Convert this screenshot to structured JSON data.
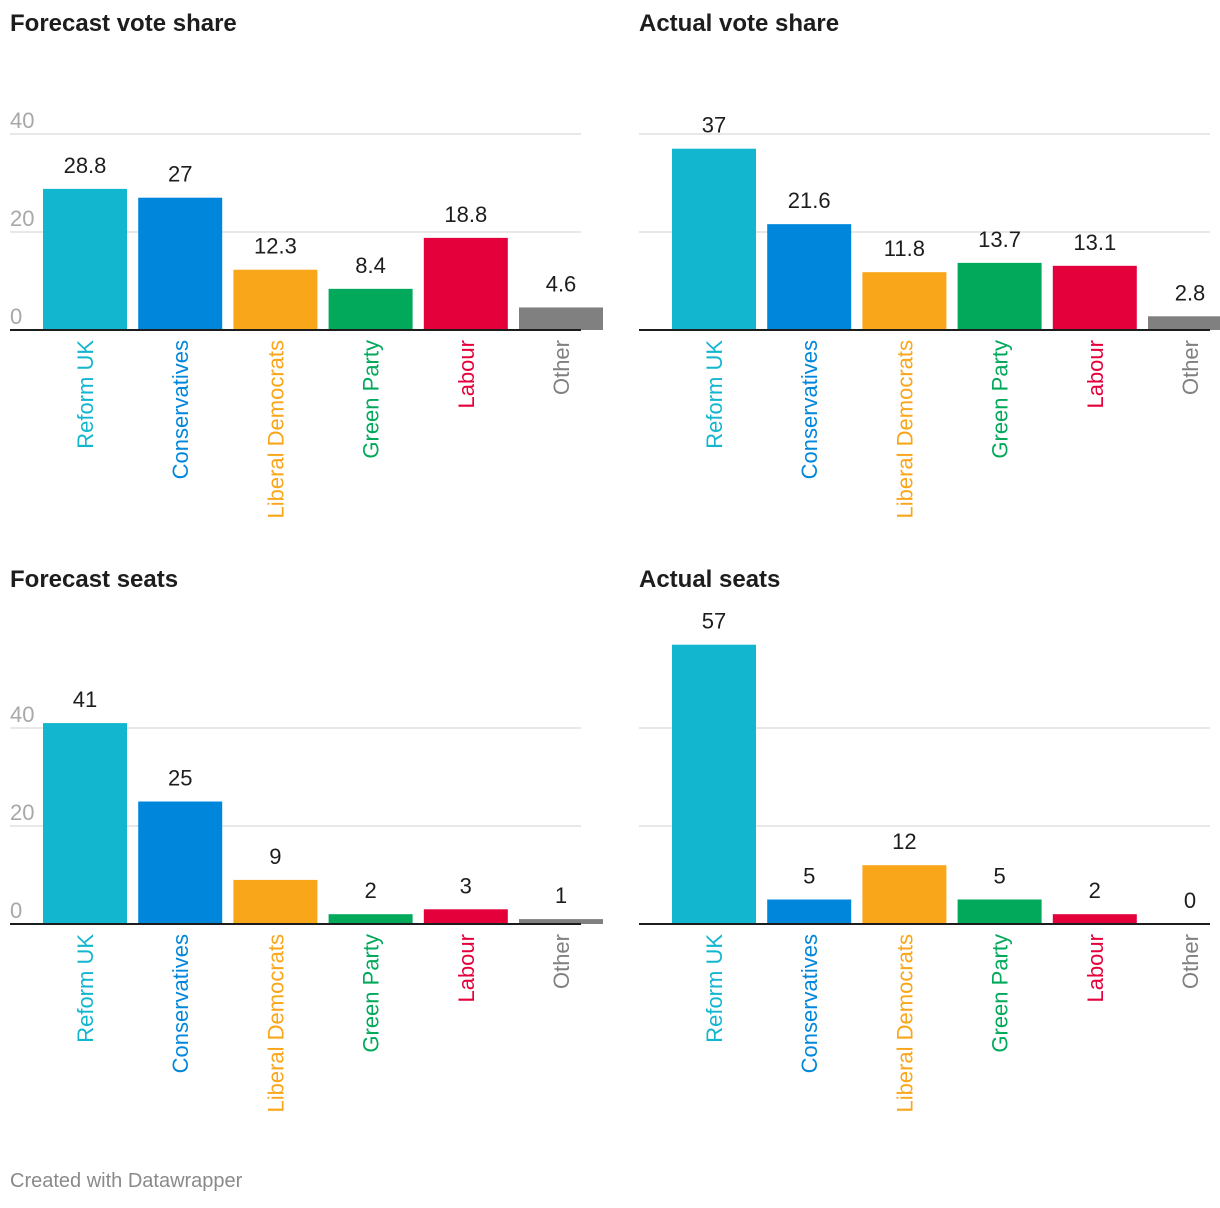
{
  "footer": "Created with Datawrapper",
  "colors": {
    "Reform UK": "#12b6cf",
    "Conservatives": "#0087dc",
    "Liberal Democrats": "#faa61a",
    "Green Party": "#02a95b",
    "Labour": "#e4003b",
    "Other": "#808080",
    "axis": "#1d1d1d",
    "grid": "#e0e0e0",
    "tick": "#a8a8a8"
  },
  "chart_data": [
    {
      "type": "bar",
      "title": "Forecast vote share",
      "categories": [
        "Reform UK",
        "Conservatives",
        "Liberal Democrats",
        "Green Party",
        "Labour",
        "Other"
      ],
      "values": [
        28.8,
        27,
        12.3,
        8.4,
        18.8,
        4.6
      ],
      "value_labels": [
        "28.8",
        "27",
        "12.3",
        "8.4",
        "18.8",
        "4.6"
      ],
      "yticks": [
        0,
        20,
        40
      ],
      "ytick_labels": [
        "0",
        "20",
        "40"
      ],
      "ylim": [
        0,
        40
      ],
      "xlabel": "",
      "ylabel": "",
      "grid": true
    },
    {
      "type": "bar",
      "title": "Actual vote share",
      "categories": [
        "Reform UK",
        "Conservatives",
        "Liberal Democrats",
        "Green Party",
        "Labour",
        "Other"
      ],
      "values": [
        37,
        21.6,
        11.8,
        13.7,
        13.1,
        2.8
      ],
      "value_labels": [
        "37",
        "21.6",
        "11.8",
        "13.7",
        "13.1",
        "2.8"
      ],
      "yticks": [
        0,
        20,
        40
      ],
      "ytick_labels": [],
      "ylim": [
        0,
        40
      ],
      "xlabel": "",
      "ylabel": "",
      "grid": true
    },
    {
      "type": "bar",
      "title": "Forecast seats",
      "categories": [
        "Reform UK",
        "Conservatives",
        "Liberal Democrats",
        "Green Party",
        "Labour",
        "Other"
      ],
      "values": [
        41,
        25,
        9,
        2,
        3,
        1
      ],
      "value_labels": [
        "41",
        "25",
        "9",
        "2",
        "3",
        "1"
      ],
      "yticks": [
        0,
        20,
        40
      ],
      "ytick_labels": [
        "0",
        "20",
        "40"
      ],
      "ylim": [
        0,
        40
      ],
      "xlabel": "",
      "ylabel": "",
      "grid": true
    },
    {
      "type": "bar",
      "title": "Actual seats",
      "categories": [
        "Reform UK",
        "Conservatives",
        "Liberal Democrats",
        "Green Party",
        "Labour",
        "Other"
      ],
      "values": [
        57,
        5,
        12,
        5,
        2,
        0
      ],
      "value_labels": [
        "57",
        "5",
        "12",
        "5",
        "2",
        "0"
      ],
      "yticks": [
        0,
        20,
        40
      ],
      "ytick_labels": [],
      "ylim": [
        0,
        40
      ],
      "xlabel": "",
      "ylabel": "",
      "grid": true
    }
  ]
}
